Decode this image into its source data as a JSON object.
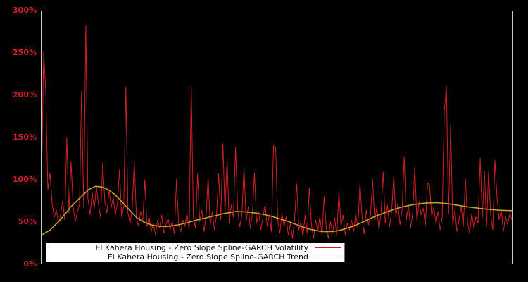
{
  "window": {
    "background": "#000000"
  },
  "colors": {
    "background": "#000000",
    "plot_border": "#c8c8c8",
    "tick_label": "#d02020",
    "volatility": "#cc2127",
    "trend": "#c69e2e",
    "legend_bg": "#ffffff",
    "legend_border": "#6e6e6e",
    "legend_text": "#111111"
  },
  "chart_data": {
    "type": "line",
    "title": "",
    "xlabel": "",
    "ylabel": "",
    "grid": false,
    "x_tick_labels": [],
    "ylim": [
      0,
      300
    ],
    "y_unit": "%",
    "y_ticks_display": [
      "300%",
      "250%",
      "200%",
      "150%",
      "100%",
      "50%",
      "0%"
    ],
    "legend": {
      "position": "inside lower-left, white box, right-aligned labels with line swatches on the right",
      "entries": [
        {
          "label": "El Kahera Housing - Zero Slope Spline-GARCH Volatility",
          "color": "#cc2127"
        },
        {
          "label": "El Kahera Housing - Zero Slope Spline-GARCH Trend",
          "color": "#c69e2e"
        }
      ]
    },
    "series": [
      {
        "name": "El Kahera Housing - Zero Slope Spline-GARCH Volatility",
        "color": "#cc2127",
        "style": "noisy spiky line, values in percent, x is an unlabeled time index",
        "values": [
          96,
          253,
          205,
          88,
          108,
          72,
          55,
          64,
          48,
          58,
          75,
          52,
          150,
          60,
          121,
          68,
          50,
          62,
          70,
          205,
          66,
          283,
          78,
          58,
          85,
          65,
          92,
          70,
          55,
          120,
          74,
          60,
          88,
          66,
          79,
          58,
          72,
          112,
          55,
          68,
          210,
          60,
          48,
          66,
          122,
          54,
          45,
          62,
          50,
          100,
          44,
          56,
          38,
          48,
          34,
          52,
          42,
          58,
          36,
          46,
          54,
          40,
          50,
          35,
          100,
          48,
          38,
          52,
          44,
          60,
          40,
          212,
          55,
          42,
          107,
          50,
          64,
          38,
          56,
          103,
          46,
          62,
          40,
          58,
          107,
          52,
          143,
          60,
          125,
          48,
          70,
          55,
          139,
          64,
          44,
          58,
          115,
          50,
          68,
          42,
          60,
          108,
          48,
          62,
          40,
          55,
          70,
          45,
          58,
          38,
          140,
          138,
          52,
          36,
          60,
          44,
          56,
          34,
          48,
          30,
          54,
          95,
          40,
          50,
          32,
          58,
          36,
          90,
          46,
          30,
          52,
          38,
          56,
          33,
          80,
          42,
          30,
          50,
          36,
          55,
          32,
          86,
          44,
          58,
          34,
          48,
          40,
          52,
          38,
          60,
          42,
          96,
          55,
          35,
          64,
          46,
          58,
          100,
          50,
          68,
          40,
          60,
          109,
          48,
          70,
          44,
          62,
          105,
          55,
          72,
          46,
          64,
          127,
          52,
          70,
          42,
          60,
          115,
          50,
          74,
          58,
          66,
          45,
          96,
          93,
          56,
          68,
          48,
          62,
          40,
          55,
          182,
          211,
          58,
          166,
          46,
          64,
          38,
          52,
          68,
          44,
          101,
          50,
          36,
          60,
          42,
          56,
          48,
          126,
          54,
          110,
          44,
          110,
          58,
          40,
          123,
          79,
          52,
          64,
          38,
          56,
          46,
          60,
          52
        ]
      },
      {
        "name": "El Kahera Housing - Zero Slope Spline-GARCH Trend",
        "color": "#c69e2e",
        "style": "smooth spline, points are [x_fraction_of_axis, percent_value]",
        "points": [
          [
            0.0,
            34
          ],
          [
            0.018,
            40
          ],
          [
            0.04,
            52
          ],
          [
            0.063,
            68
          ],
          [
            0.085,
            80
          ],
          [
            0.1,
            88
          ],
          [
            0.115,
            92
          ],
          [
            0.13,
            91
          ],
          [
            0.145,
            87
          ],
          [
            0.16,
            80
          ],
          [
            0.175,
            71
          ],
          [
            0.19,
            62
          ],
          [
            0.204,
            54
          ],
          [
            0.219,
            49
          ],
          [
            0.234,
            46
          ],
          [
            0.249,
            44.5
          ],
          [
            0.264,
            44
          ],
          [
            0.279,
            45
          ],
          [
            0.294,
            46.5
          ],
          [
            0.309,
            48.5
          ],
          [
            0.324,
            51
          ],
          [
            0.346,
            54
          ],
          [
            0.369,
            57
          ],
          [
            0.391,
            60
          ],
          [
            0.413,
            62
          ],
          [
            0.436,
            61.5
          ],
          [
            0.458,
            60
          ],
          [
            0.481,
            57.5
          ],
          [
            0.503,
            54
          ],
          [
            0.525,
            50
          ],
          [
            0.548,
            45
          ],
          [
            0.57,
            41
          ],
          [
            0.593,
            38.5
          ],
          [
            0.607,
            38
          ],
          [
            0.622,
            38.5
          ],
          [
            0.637,
            40
          ],
          [
            0.66,
            44
          ],
          [
            0.682,
            49
          ],
          [
            0.704,
            55
          ],
          [
            0.727,
            60
          ],
          [
            0.749,
            64.5
          ],
          [
            0.771,
            68
          ],
          [
            0.794,
            70.5
          ],
          [
            0.816,
            72
          ],
          [
            0.839,
            72.5
          ],
          [
            0.861,
            71.5
          ],
          [
            0.884,
            69.5
          ],
          [
            0.906,
            67.5
          ],
          [
            0.928,
            66
          ],
          [
            0.951,
            64.5
          ],
          [
            0.973,
            63.5
          ],
          [
            1.0,
            63
          ]
        ]
      }
    ]
  }
}
